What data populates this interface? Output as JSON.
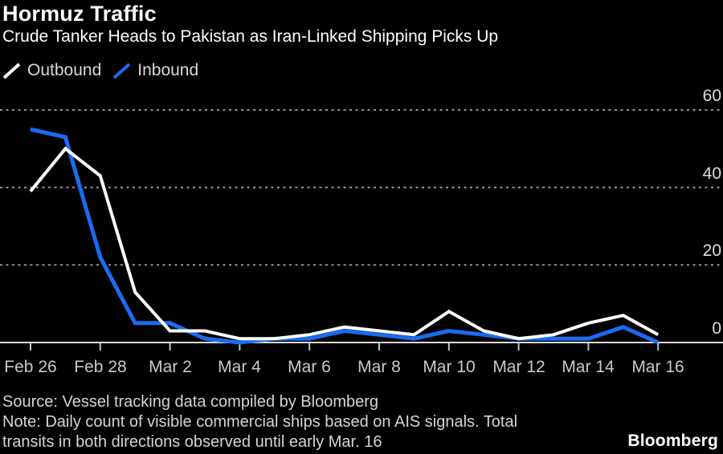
{
  "header": {
    "title": "Hormuz Traffic",
    "subtitle": "Crude Tanker Heads to Pakistan as Iran-Linked Shipping Picks Up"
  },
  "legend": {
    "items": [
      {
        "label": "Outbound",
        "color": "#ffffff"
      },
      {
        "label": "Inbound",
        "color": "#1a6cf0"
      }
    ]
  },
  "chart_data": {
    "type": "line",
    "title": "Hormuz Traffic",
    "subtitle": "Crude Tanker Heads to Pakistan as Iran-Linked Shipping Picks Up",
    "x": [
      "Feb 26",
      "Feb 27",
      "Feb 28",
      "Mar 1",
      "Mar 2",
      "Mar 3",
      "Mar 4",
      "Mar 5",
      "Mar 6",
      "Mar 7",
      "Mar 8",
      "Mar 9",
      "Mar 10",
      "Mar 11",
      "Mar 12",
      "Mar 13",
      "Mar 14",
      "Mar 15",
      "Mar 16"
    ],
    "series": [
      {
        "name": "Outbound",
        "color": "#ffffff",
        "values": [
          39,
          50,
          43,
          13,
          3,
          3,
          1,
          1,
          2,
          4,
          3,
          2,
          8,
          3,
          1,
          2,
          5,
          7,
          2
        ]
      },
      {
        "name": "Inbound",
        "color": "#1a6cf0",
        "values": [
          55,
          53,
          22,
          5,
          5,
          1,
          0,
          1,
          1,
          3,
          2,
          1,
          3,
          2,
          1,
          1,
          1,
          4,
          0
        ]
      }
    ],
    "xticks": [
      "Feb 26",
      "Feb 28",
      "Mar 2",
      "Mar 4",
      "Mar 6",
      "Mar 8",
      "Mar 10",
      "Mar 12",
      "Mar 14",
      "Mar 16"
    ],
    "yticks": [
      60,
      40,
      20,
      0
    ],
    "ylim": [
      0,
      62
    ],
    "grid": "horizontal-dashed",
    "y_axis_side": "right",
    "legend_position": "top-left",
    "background": "#000000"
  },
  "footer": {
    "source": "Source: Vessel tracking data compiled by Bloomberg",
    "note_line1": "Note: Daily count of visible commercial ships based on AIS signals. Total",
    "note_line2": "transits in both directions observed until early Mar. 16",
    "brand": "Bloomberg"
  }
}
